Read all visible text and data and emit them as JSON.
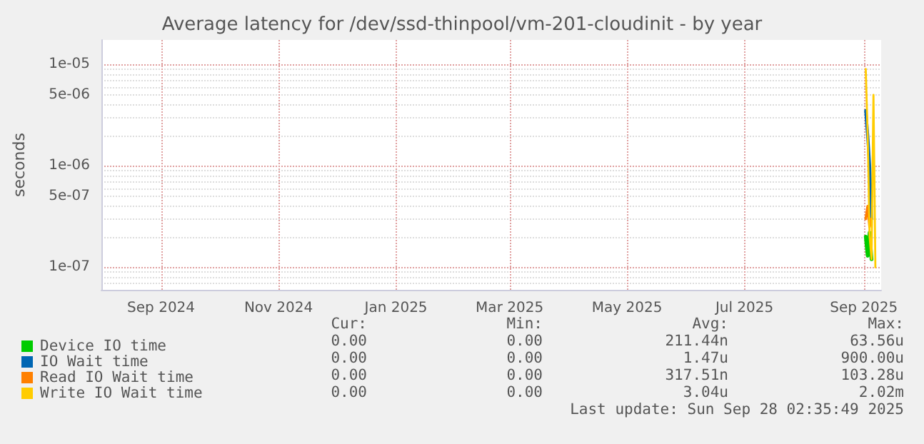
{
  "chart_data": {
    "type": "line",
    "title": "Average latency for /dev/ssd-thinpool/vm-201-cloudinit - by year",
    "ylabel": "seconds",
    "log": "y",
    "grid": true,
    "legend": "bottom left",
    "marker": "none",
    "line_style": "solid",
    "xlim": [
      "2024-08-01",
      "2025-09-10"
    ],
    "xticks": [
      {
        "value": "2024-09-01",
        "label": "Sep 2024"
      },
      {
        "value": "2024-11-01",
        "label": "Nov 2024"
      },
      {
        "value": "2025-01-01",
        "label": "Jan 2025"
      },
      {
        "value": "2025-03-01",
        "label": "Mar 2025"
      },
      {
        "value": "2025-05-01",
        "label": "May 2025"
      },
      {
        "value": "2025-07-01",
        "label": "Jul 2025"
      },
      {
        "value": "2025-09-01",
        "label": "Sep 2025"
      }
    ],
    "ylim": [
      6e-08,
      1.74e-05
    ],
    "yticks": [
      {
        "value": 1e-07,
        "label": "1e-07"
      },
      {
        "value": 5e-07,
        "label": "5e-07"
      },
      {
        "value": 1e-06,
        "label": "1e-06"
      },
      {
        "value": 5e-06,
        "label": "5e-06"
      },
      {
        "value": 1e-05,
        "label": "1e-05"
      }
    ],
    "series": [
      {
        "name": "Device IO time",
        "color": "#00cc00",
        "x": [
          "2025-09-02",
          "2025-09-03",
          "2025-09-04",
          "2025-09-05"
        ],
        "values": [
          2e-07,
          1.3e-07,
          2.2e-07,
          1.2e-07
        ]
      },
      {
        "name": "IO Wait time",
        "color": "#0066b3",
        "x": [
          "2025-09-02",
          "2025-09-03",
          "2025-09-04",
          "2025-09-05"
        ],
        "values": [
          3.5e-06,
          2e-06,
          1e-06,
          3e-07
        ]
      },
      {
        "name": "Read IO Wait time",
        "color": "#ff8000",
        "x": [
          "2025-09-02",
          "2025-09-03",
          "2025-09-04",
          "2025-09-05"
        ],
        "values": [
          3e-07,
          4e-07,
          2.5e-07,
          3e-07
        ]
      },
      {
        "name": "Write IO Wait time",
        "color": "#ffcc00",
        "x": [
          "2025-09-02",
          "2025-09-03",
          "2025-09-04",
          "2025-09-05",
          "2025-09-06",
          "2025-09-07"
        ],
        "values": [
          9e-06,
          2e-06,
          2e-07,
          1.2e-07,
          5e-06,
          1e-07
        ]
      }
    ],
    "annotations": [
      "Cur:",
      "Min:",
      "Avg:",
      "Max:",
      "0.00",
      "0.00",
      "211.44n",
      "63.56u",
      "0.00",
      "0.00",
      "1.47u",
      "900.00u",
      "0.00",
      "0.00",
      "317.51n",
      "103.28u",
      "0.00",
      "0.00",
      "3.04u",
      "2.02m",
      "Last update: Sun Sep 28 02:35:49 2025"
    ]
  }
}
